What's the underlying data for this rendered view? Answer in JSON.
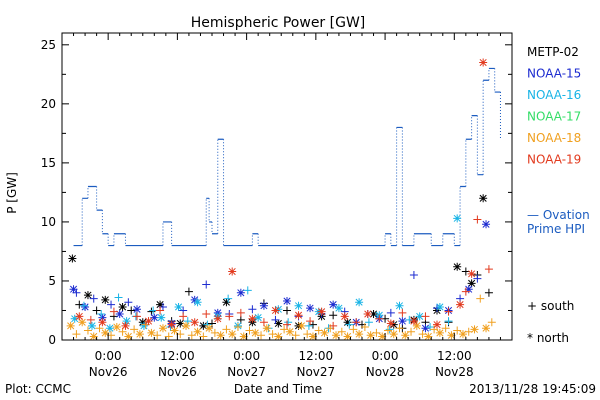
{
  "chart_data": {
    "type": "scatter",
    "title": "Hemispheric Power [GW]",
    "ylabel": "P [GW]",
    "xlabel": "Date and Time",
    "ylim": [
      0,
      26
    ],
    "xlim": [
      -8,
      70
    ],
    "x_units": "hours since 2013-11-26 00:00",
    "yticks": [
      0,
      5,
      10,
      15,
      20,
      25
    ],
    "xticks": [
      {
        "x": 0,
        "label": "0:00",
        "date": "Nov26"
      },
      {
        "x": 12,
        "label": "12:00",
        "date": "Nov26"
      },
      {
        "x": 24,
        "label": "0:00",
        "date": "Nov27"
      },
      {
        "x": 36,
        "label": "12:00",
        "date": "Nov27"
      },
      {
        "x": 48,
        "label": "0:00",
        "date": "Nov28"
      },
      {
        "x": 60,
        "label": "12:00",
        "date": "Nov28"
      }
    ],
    "legend": {
      "placement": "right",
      "satellites": [
        {
          "name": "METP-02",
          "color": "#000000"
        },
        {
          "name": "NOAA-15",
          "color": "#1c2bd0"
        },
        {
          "name": "NOAA-16",
          "color": "#19b4e6"
        },
        {
          "name": "NOAA-17",
          "color": "#33dd66"
        },
        {
          "name": "NOAA-18",
          "color": "#f0a020"
        },
        {
          "name": "NOAA-19",
          "color": "#e23a1e"
        }
      ],
      "model": {
        "line1": "— Ovation",
        "line2": "Prime HPI",
        "color": "#1c5cc0"
      },
      "markers": [
        {
          "symbol": "+",
          "label": "south"
        },
        {
          "symbol": "*",
          "label": "north"
        }
      ]
    },
    "ovation_series": {
      "name": "Ovation Prime HPI",
      "color": "#1c5cc0",
      "x": [
        -6.0,
        -4.5,
        -3.5,
        -2.0,
        -1.0,
        0.0,
        1.0,
        3.0,
        4.0,
        6.0,
        7.0,
        8.0,
        9.5,
        11.0,
        12.5,
        16.0,
        17.0,
        17.5,
        18.0,
        19.0,
        20.0,
        21.0,
        22.0,
        25.0,
        26.0,
        27.0,
        28.0,
        31.0,
        36.0,
        45.0,
        48.0,
        49.0,
        50.0,
        51.0,
        52.0,
        53.0,
        54.0,
        56.0,
        57.0,
        58.0,
        60.0,
        61.0,
        62.0,
        63.0,
        64.0,
        65.0,
        66.0,
        67.0,
        68.0
      ],
      "y": [
        8.0,
        12.0,
        13.0,
        11.0,
        9.0,
        8.0,
        9.0,
        8.0,
        8.0,
        8.0,
        8.0,
        8.0,
        10.0,
        8.0,
        8.0,
        8.0,
        12.0,
        10.0,
        9.0,
        17.0,
        8.0,
        8.0,
        8.0,
        9.0,
        8.0,
        8.0,
        8.0,
        8.0,
        8.0,
        8.0,
        9.0,
        8.0,
        18.0,
        8.0,
        8.0,
        9.0,
        9.0,
        8.0,
        8.0,
        9.0,
        8.0,
        13.0,
        17.0,
        19.0,
        14.0,
        22.0,
        23.0,
        21.0,
        17.0
      ]
    },
    "series": [
      {
        "name": "METP-02",
        "color": "#000000",
        "marker": "*",
        "x": [
          -6.2,
          -5.0,
          -3.5,
          -2.0,
          -0.5,
          1.0,
          2.5,
          4.0,
          6.0,
          7.5,
          9.0,
          11.0,
          12.5,
          14.0,
          16.5,
          18.0,
          20.5,
          23.0,
          25.0,
          27.0,
          29.5,
          31.0,
          33.0,
          35.5,
          37.0,
          39.0,
          41.5,
          44.0,
          46.0,
          48.0,
          49.5,
          51.0,
          53.0,
          55.0,
          57.0,
          59.0,
          60.5,
          62.0,
          63.0,
          64.0,
          65.0,
          66.0
        ],
        "y": [
          6.9,
          3.0,
          3.8,
          2.5,
          3.4,
          2.0,
          2.8,
          2.5,
          1.5,
          2.4,
          3.0,
          1.6,
          1.4,
          4.1,
          1.2,
          1.4,
          3.2,
          1.7,
          1.5,
          3.1,
          1.4,
          2.5,
          1.2,
          1.3,
          2.0,
          2.1,
          1.5,
          1.3,
          2.2,
          1.8,
          1.3,
          1.0,
          1.7,
          1.5,
          2.5,
          1.5,
          6.2,
          5.8,
          4.8,
          5.5,
          12.0,
          4.0
        ]
      },
      {
        "name": "NOAA-15",
        "color": "#1c2bd0",
        "marker": "*",
        "x": [
          -6.0,
          -5.5,
          -4.0,
          -2.5,
          -1.0,
          0.5,
          2.0,
          3.5,
          5.0,
          6.5,
          8.0,
          9.5,
          11.0,
          13.0,
          15.0,
          17.0,
          19.0,
          21.0,
          23.0,
          25.0,
          27.0,
          29.0,
          31.0,
          33.0,
          35.0,
          37.0,
          39.0,
          41.0,
          43.0,
          45.0,
          47.0,
          49.0,
          51.0,
          53.0,
          55.0,
          57.0,
          59.0,
          61.0,
          62.5,
          64.0,
          65.5
        ],
        "y": [
          4.3,
          4.0,
          2.8,
          3.5,
          1.9,
          3.0,
          2.2,
          3.2,
          2.6,
          1.3,
          1.9,
          2.8,
          1.4,
          2.5,
          3.4,
          4.7,
          2.3,
          2.2,
          4.0,
          2.6,
          2.9,
          1.7,
          3.3,
          2.0,
          2.7,
          2.2,
          3.0,
          2.4,
          1.5,
          2.2,
          1.8,
          2.3,
          1.6,
          5.5,
          1.0,
          2.7,
          2.5,
          3.5,
          4.3,
          5.2,
          9.8
        ]
      },
      {
        "name": "NOAA-16",
        "color": "#19b4e6",
        "marker": "*",
        "x": [
          -5.8,
          -4.2,
          -2.8,
          -1.2,
          0.3,
          1.8,
          3.2,
          4.8,
          6.2,
          7.8,
          9.2,
          10.8,
          12.2,
          13.8,
          15.5,
          17.2,
          19.0,
          20.8,
          22.5,
          24.2,
          26.0,
          27.8,
          29.5,
          31.2,
          33.0,
          34.8,
          36.5,
          38.2,
          40.0,
          41.8,
          43.5,
          45.2,
          47.0,
          48.8,
          50.5,
          52.2,
          54.0,
          55.8,
          57.5,
          59.0,
          60.5
        ],
        "y": [
          1.8,
          2.9,
          1.2,
          2.2,
          1.0,
          3.6,
          1.6,
          2.0,
          1.2,
          2.5,
          1.9,
          1.1,
          2.8,
          1.6,
          3.2,
          1.3,
          2.0,
          3.5,
          1.2,
          4.2,
          1.9,
          1.0,
          2.6,
          1.5,
          2.9,
          1.2,
          2.4,
          1.0,
          2.7,
          1.3,
          3.2,
          1.5,
          2.1,
          0.9,
          2.9,
          1.7,
          2.0,
          1.1,
          2.8,
          1.6,
          10.3
        ]
      },
      {
        "name": "NOAA-18",
        "color": "#f0a020",
        "marker": "*",
        "x": [
          -6.5,
          -5.5,
          -4.5,
          -3.5,
          -2.5,
          -1.5,
          -0.5,
          0.5,
          1.5,
          2.5,
          3.5,
          4.5,
          5.5,
          6.5,
          7.5,
          8.5,
          9.5,
          10.5,
          11.5,
          12.5,
          13.5,
          14.5,
          15.5,
          16.5,
          17.5,
          18.5,
          19.5,
          20.5,
          21.5,
          22.5,
          23.5,
          24.5,
          25.5,
          26.5,
          27.5,
          28.5,
          29.5,
          30.5,
          31.5,
          32.5,
          33.5,
          34.5,
          35.5,
          36.5,
          37.5,
          38.5,
          39.5,
          40.5,
          41.5,
          42.5,
          43.5,
          44.5,
          45.5,
          46.5,
          47.5,
          48.5,
          49.5,
          50.5,
          51.5,
          52.5,
          53.5,
          54.5,
          55.5,
          56.5,
          57.5,
          58.5,
          59.5,
          60.5,
          61.5,
          62.5,
          63.5,
          64.5,
          65.5,
          66.5
        ],
        "y": [
          1.2,
          0.5,
          1.5,
          0.8,
          0.3,
          1.0,
          0.6,
          0.4,
          1.1,
          0.7,
          0.3,
          0.9,
          0.5,
          1.3,
          0.6,
          0.4,
          1.0,
          0.3,
          0.8,
          0.5,
          1.2,
          0.4,
          0.7,
          0.3,
          1.0,
          0.6,
          0.4,
          0.9,
          0.5,
          1.1,
          0.3,
          0.8,
          0.6,
          0.4,
          1.0,
          0.5,
          0.3,
          0.9,
          0.7,
          0.4,
          1.2,
          0.5,
          0.3,
          0.8,
          0.6,
          1.0,
          0.4,
          0.7,
          0.3,
          0.9,
          0.5,
          1.1,
          0.4,
          0.6,
          0.3,
          0.8,
          0.5,
          1.0,
          0.4,
          0.7,
          1.2,
          0.5,
          0.3,
          0.9,
          0.6,
          1.0,
          0.4,
          0.8,
          0.5,
          0.7,
          0.9,
          3.5,
          1.0,
          1.5
        ]
      },
      {
        "name": "NOAA-19",
        "color": "#e23a1e",
        "marker": "*",
        "x": [
          -5.0,
          -3.0,
          -1.0,
          1.0,
          3.0,
          5.0,
          7.0,
          9.0,
          11.0,
          13.0,
          15.0,
          17.0,
          19.0,
          21.0,
          21.5,
          23.0,
          25.0,
          27.0,
          29.0,
          31.0,
          33.0,
          35.0,
          37.0,
          39.0,
          41.0,
          43.0,
          45.0,
          47.0,
          49.0,
          51.0,
          53.0,
          55.0,
          57.0,
          59.0,
          61.0,
          62.0,
          63.0,
          64.0,
          65.0,
          66.0
        ],
        "y": [
          2.0,
          1.7,
          1.5,
          2.4,
          1.2,
          2.0,
          1.6,
          2.5,
          1.3,
          2.0,
          1.5,
          2.2,
          1.8,
          2.0,
          5.8,
          2.3,
          1.8,
          1.5,
          2.5,
          1.3,
          2.1,
          1.6,
          2.4,
          1.2,
          2.0,
          1.5,
          2.2,
          1.8,
          1.4,
          2.3,
          1.6,
          2.0,
          1.3,
          2.4,
          3.0,
          4.1,
          5.6,
          10.2,
          23.5,
          6.0
        ]
      }
    ]
  },
  "footer": {
    "plot_credit": "Plot: CCMC",
    "timestamp": "2013/11/28 19:45:09"
  }
}
